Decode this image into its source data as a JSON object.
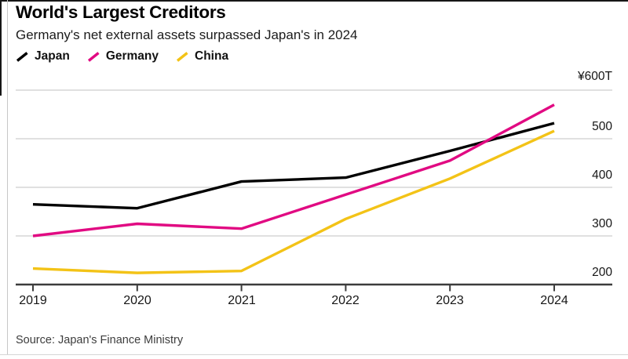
{
  "header": {
    "title": "World's Largest Creditors",
    "subtitle": "Germany's net external assets surpassed Japan's in 2024"
  },
  "legend": [
    {
      "label": "Japan",
      "color": "#000000"
    },
    {
      "label": "Germany",
      "color": "#e10a82"
    },
    {
      "label": "China",
      "color": "#f3c317"
    }
  ],
  "chart_data": {
    "type": "line",
    "title": "World's Largest Creditors",
    "subtitle": "Germany's net external assets surpassed Japan's in 2024",
    "x": [
      2019,
      2020,
      2021,
      2022,
      2023,
      2024
    ],
    "x_ticks": [
      "2019",
      "2020",
      "2021",
      "2022",
      "2023",
      "2024"
    ],
    "series": [
      {
        "name": "Japan",
        "color": "#000000",
        "values": [
          365,
          357,
          412,
          420,
          475,
          532
        ]
      },
      {
        "name": "Germany",
        "color": "#e10a82",
        "values": [
          300,
          325,
          315,
          385,
          455,
          570
        ]
      },
      {
        "name": "China",
        "color": "#f3c317",
        "values": [
          233,
          224,
          228,
          335,
          418,
          516
        ]
      }
    ],
    "ylabel": "",
    "xlabel": "",
    "unit": "¥ trillion",
    "y_axis_side": "right",
    "y_tick_labels": [
      "¥600T",
      "500",
      "400",
      "300",
      "200"
    ],
    "y_tick_values": [
      600,
      500,
      400,
      300,
      200
    ],
    "ylim": [
      200,
      600
    ],
    "grid": "horizontal",
    "legend_position": "top-left"
  },
  "source": "Source: Japan's Finance Ministry",
  "colors": {
    "gridline": "#dcdcdc",
    "axis": "#3c3c3c",
    "background": "#ffffff"
  }
}
